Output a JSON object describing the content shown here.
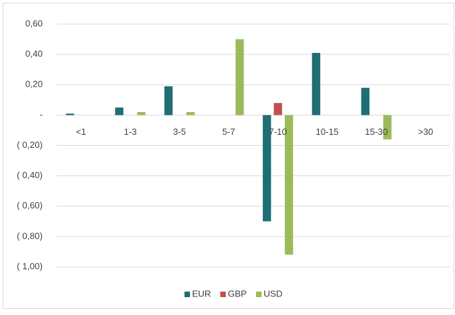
{
  "chart_data": {
    "type": "bar",
    "categories": [
      "<1",
      "1-3",
      "3-5",
      "5-7",
      "7-10",
      "10-15",
      "15-30",
      ">30"
    ],
    "series": [
      {
        "name": "EUR",
        "color": "#1e6e74",
        "values": [
          0.01,
          0.05,
          0.19,
          0,
          -0.7,
          0.41,
          0.18,
          0
        ]
      },
      {
        "name": "GBP",
        "color": "#c0504d",
        "values": [
          0,
          0,
          0,
          0,
          0.08,
          0,
          0,
          0
        ]
      },
      {
        "name": "USD",
        "color": "#9bbb59",
        "values": [
          0,
          0.02,
          0.02,
          0.5,
          -0.92,
          0,
          -0.16,
          0
        ]
      }
    ],
    "ylim": [
      -1.0,
      0.6
    ],
    "yticks": [
      {
        "value": 0.6,
        "label": "0,60"
      },
      {
        "value": 0.4,
        "label": "0,40"
      },
      {
        "value": 0.2,
        "label": "0,20"
      },
      {
        "value": 0,
        "label": "-"
      },
      {
        "value": -0.2,
        "label": "( 0,20)"
      },
      {
        "value": -0.4,
        "label": "( 0,40)"
      },
      {
        "value": -0.6,
        "label": "( 0,60)"
      },
      {
        "value": -0.8,
        "label": "( 0,80)"
      },
      {
        "value": -1.0,
        "label": "( 1,00)"
      }
    ],
    "grid": true,
    "legend": "bottom"
  }
}
